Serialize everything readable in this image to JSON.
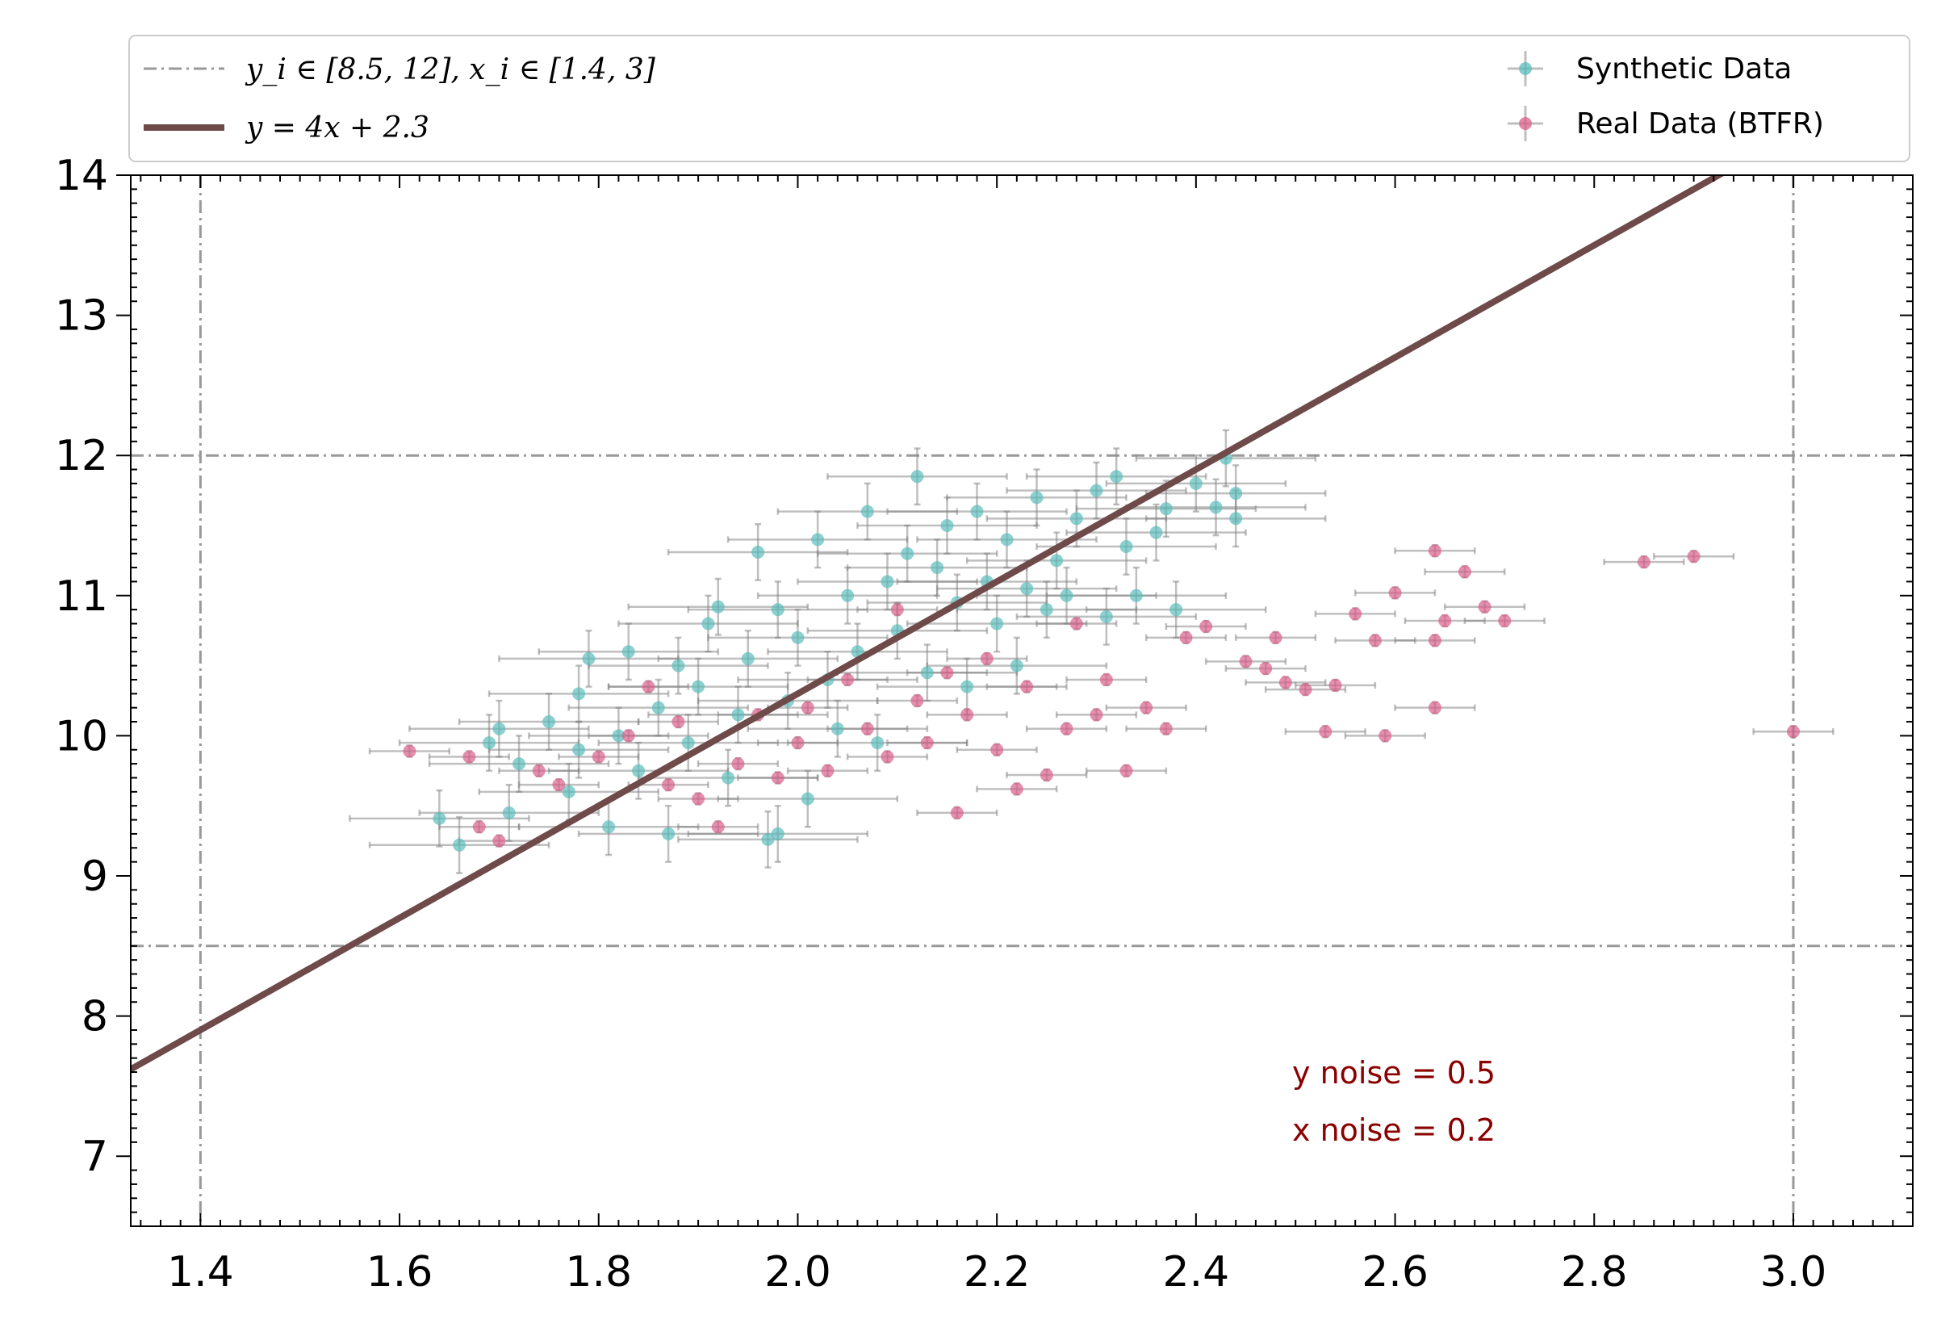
{
  "chart_data": {
    "type": "scatter",
    "title": "",
    "xlabel": "",
    "ylabel": "",
    "xlim": [
      1.33,
      3.12
    ],
    "ylim": [
      6.5,
      14
    ],
    "x_ticks": [
      1.4,
      1.6,
      1.8,
      2.0,
      2.2,
      2.4,
      2.6,
      2.8,
      3.0
    ],
    "x_tick_labels": [
      "1.4",
      "1.6",
      "1.8",
      "2.0",
      "2.2",
      "2.4",
      "2.6",
      "2.8",
      "3.0"
    ],
    "y_ticks": [
      7,
      8,
      9,
      10,
      11,
      12,
      13,
      14
    ],
    "y_tick_labels": [
      "7",
      "8",
      "9",
      "10",
      "11",
      "12",
      "13",
      "14"
    ],
    "grid": false,
    "legend_placement": "top (above plot, spanning width)",
    "colors": {
      "synthetic": "#5bbcbc",
      "real": "#d9608a",
      "fit_line": "#6e4a49",
      "bounds": "#999999",
      "error_bars": "#808080",
      "annotation": "#8b0000"
    },
    "reference_lines": {
      "horizontal": [
        8.5,
        12
      ],
      "vertical": [
        1.4,
        3.0
      ]
    },
    "fit_line": {
      "slope": 4,
      "intercept": 2.3
    },
    "legend": [
      {
        "label_math": "y_i ∈ [8.5, 12],  x_i ∈ [1.4, 3]",
        "style": "dash-dot"
      },
      {
        "label_math": "y = 4x + 2.3",
        "style": "solid"
      },
      {
        "label": "Synthetic Data",
        "style": "errorbar-marker"
      },
      {
        "label": "Real Data (BTFR)",
        "style": "errorbar-marker"
      }
    ],
    "annotations": [
      "y noise = 0.5",
      "x noise = 0.2"
    ],
    "series": [
      {
        "name": "Synthetic Data",
        "x_err": 0.09,
        "y_err": 0.2,
        "points": [
          [
            1.64,
            9.41
          ],
          [
            1.66,
            9.22
          ],
          [
            1.69,
            9.95
          ],
          [
            1.7,
            10.05
          ],
          [
            1.71,
            9.45
          ],
          [
            1.72,
            9.8
          ],
          [
            1.75,
            10.1
          ],
          [
            1.77,
            9.6
          ],
          [
            1.78,
            9.9
          ],
          [
            1.78,
            10.3
          ],
          [
            1.79,
            10.55
          ],
          [
            1.81,
            9.35
          ],
          [
            1.82,
            10.0
          ],
          [
            1.83,
            10.6
          ],
          [
            1.84,
            9.75
          ],
          [
            1.86,
            10.2
          ],
          [
            1.87,
            9.3
          ],
          [
            1.88,
            10.5
          ],
          [
            1.89,
            9.95
          ],
          [
            1.9,
            10.35
          ],
          [
            1.91,
            10.8
          ],
          [
            1.92,
            10.92
          ],
          [
            1.93,
            9.7
          ],
          [
            1.94,
            10.15
          ],
          [
            1.95,
            10.55
          ],
          [
            1.96,
            11.31
          ],
          [
            1.97,
            9.26
          ],
          [
            1.98,
            9.3
          ],
          [
            1.98,
            10.9
          ],
          [
            1.99,
            10.25
          ],
          [
            2.0,
            10.7
          ],
          [
            2.01,
            9.55
          ],
          [
            2.02,
            11.4
          ],
          [
            2.03,
            10.4
          ],
          [
            2.04,
            10.05
          ],
          [
            2.05,
            11.0
          ],
          [
            2.06,
            10.6
          ],
          [
            2.07,
            11.6
          ],
          [
            2.08,
            9.95
          ],
          [
            2.09,
            11.1
          ],
          [
            2.1,
            10.75
          ],
          [
            2.11,
            11.3
          ],
          [
            2.12,
            11.85
          ],
          [
            2.13,
            10.45
          ],
          [
            2.14,
            11.2
          ],
          [
            2.15,
            11.5
          ],
          [
            2.16,
            10.95
          ],
          [
            2.17,
            10.35
          ],
          [
            2.18,
            11.6
          ],
          [
            2.19,
            11.1
          ],
          [
            2.2,
            10.8
          ],
          [
            2.21,
            11.4
          ],
          [
            2.22,
            10.5
          ],
          [
            2.23,
            11.05
          ],
          [
            2.24,
            11.7
          ],
          [
            2.25,
            10.9
          ],
          [
            2.26,
            11.25
          ],
          [
            2.27,
            11.0
          ],
          [
            2.28,
            11.55
          ],
          [
            2.3,
            11.75
          ],
          [
            2.31,
            10.85
          ],
          [
            2.32,
            11.85
          ],
          [
            2.33,
            11.35
          ],
          [
            2.34,
            11.0
          ],
          [
            2.36,
            11.45
          ],
          [
            2.37,
            11.62
          ],
          [
            2.38,
            10.9
          ],
          [
            2.4,
            11.8
          ],
          [
            2.42,
            11.63
          ],
          [
            2.43,
            11.98
          ],
          [
            2.44,
            11.55
          ],
          [
            2.44,
            11.73
          ]
        ]
      },
      {
        "name": "Real Data (BTFR)",
        "x_err": 0.04,
        "y_err": 0.04,
        "points": [
          [
            1.61,
            9.89
          ],
          [
            1.67,
            9.85
          ],
          [
            1.68,
            9.35
          ],
          [
            1.7,
            9.25
          ],
          [
            1.74,
            9.75
          ],
          [
            1.76,
            9.65
          ],
          [
            1.8,
            9.85
          ],
          [
            1.83,
            10.0
          ],
          [
            1.85,
            10.35
          ],
          [
            1.87,
            9.65
          ],
          [
            1.88,
            10.1
          ],
          [
            1.9,
            9.55
          ],
          [
            1.92,
            9.35
          ],
          [
            1.94,
            9.8
          ],
          [
            1.96,
            10.15
          ],
          [
            1.98,
            9.7
          ],
          [
            2.0,
            9.95
          ],
          [
            2.01,
            10.2
          ],
          [
            2.03,
            9.75
          ],
          [
            2.05,
            10.4
          ],
          [
            2.07,
            10.05
          ],
          [
            2.09,
            9.85
          ],
          [
            2.1,
            10.9
          ],
          [
            2.12,
            10.25
          ],
          [
            2.13,
            9.95
          ],
          [
            2.15,
            10.45
          ],
          [
            2.16,
            9.45
          ],
          [
            2.17,
            10.15
          ],
          [
            2.19,
            10.55
          ],
          [
            2.2,
            9.9
          ],
          [
            2.22,
            9.62
          ],
          [
            2.23,
            10.35
          ],
          [
            2.25,
            9.72
          ],
          [
            2.27,
            10.05
          ],
          [
            2.28,
            10.8
          ],
          [
            2.3,
            10.15
          ],
          [
            2.31,
            10.4
          ],
          [
            2.33,
            9.75
          ],
          [
            2.35,
            10.2
          ],
          [
            2.37,
            10.05
          ],
          [
            2.39,
            10.7
          ],
          [
            2.41,
            10.78
          ],
          [
            2.45,
            10.53
          ],
          [
            2.47,
            10.48
          ],
          [
            2.48,
            10.7
          ],
          [
            2.49,
            10.38
          ],
          [
            2.51,
            10.33
          ],
          [
            2.53,
            10.03
          ],
          [
            2.54,
            10.36
          ],
          [
            2.56,
            10.87
          ],
          [
            2.58,
            10.68
          ],
          [
            2.59,
            10.0
          ],
          [
            2.6,
            11.02
          ],
          [
            2.64,
            10.2
          ],
          [
            2.64,
            10.68
          ],
          [
            2.64,
            11.32
          ],
          [
            2.65,
            10.82
          ],
          [
            2.67,
            11.17
          ],
          [
            2.69,
            10.92
          ],
          [
            2.71,
            10.82
          ],
          [
            2.85,
            11.24
          ],
          [
            2.9,
            11.28
          ],
          [
            3.0,
            10.03
          ]
        ]
      }
    ]
  }
}
